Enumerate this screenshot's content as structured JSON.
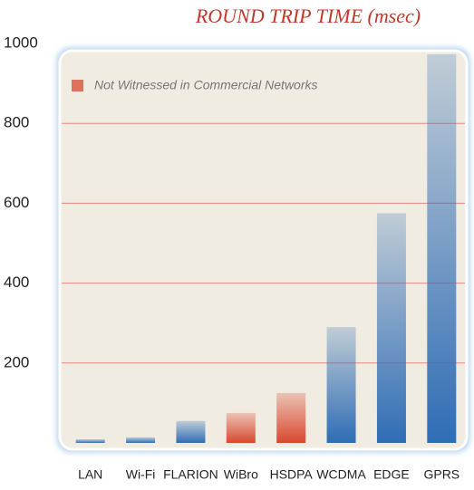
{
  "chart_data": {
    "type": "bar",
    "title": "ROUND TRIP TIME (msec)",
    "categories": [
      "LAN",
      "Wi-Fi",
      "FLARION",
      "WiBro",
      "HSDPA",
      "WCDMA",
      "EDGE",
      "GPRS"
    ],
    "values": [
      9,
      14,
      55,
      75,
      125,
      290,
      575,
      973
    ],
    "colors": [
      "#2f6db5",
      "#2f6db5",
      "#2f6db5",
      "#d9482f",
      "#d9482f",
      "#2f6db5",
      "#2f6db5",
      "#2f6db5"
    ],
    "legend": {
      "label": "Not Witnessed in Commercial Networks",
      "color": "#d9482f"
    },
    "ylim": [
      0,
      1000
    ],
    "yticks": [
      200,
      400,
      600,
      800,
      1000
    ],
    "grid": true,
    "grid_color": "#e88a80"
  }
}
